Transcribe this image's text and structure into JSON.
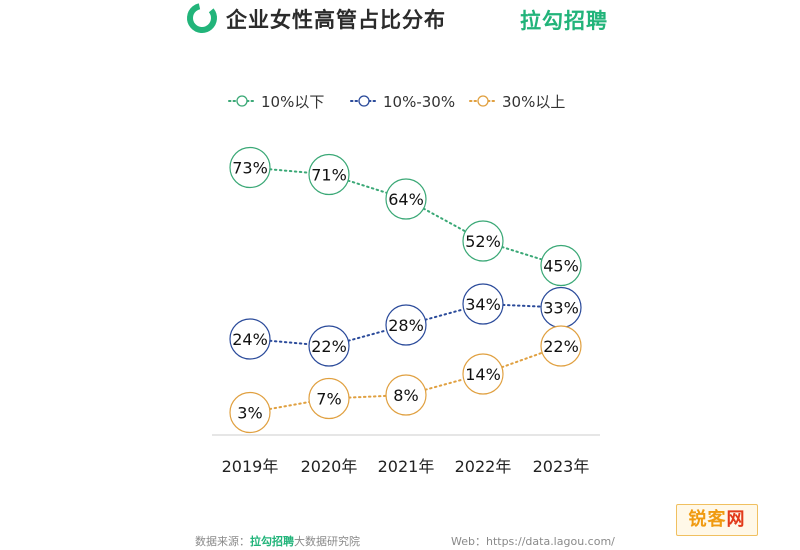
{
  "header": {
    "title": "企业女性高管占比分布",
    "brand": "拉勾招聘"
  },
  "colors": {
    "green": "#3aa876",
    "blue": "#2a4a9a",
    "orange": "#e0a040",
    "brand_green": "#22b47a"
  },
  "chart_data": {
    "type": "line",
    "title": "企业女性高管占比分布",
    "categories": [
      "2019年",
      "2020年",
      "2021年",
      "2022年",
      "2023年"
    ],
    "series": [
      {
        "name": "10%以下",
        "color": "#3aa876",
        "values": [
          73,
          71,
          64,
          52,
          45
        ],
        "labels": [
          "73%",
          "71%",
          "64%",
          "52%",
          "45%"
        ]
      },
      {
        "name": "10%-30%",
        "color": "#2a4a9a",
        "values": [
          24,
          22,
          28,
          34,
          33
        ],
        "labels": [
          "24%",
          "22%",
          "28%",
          "34%",
          "33%"
        ]
      },
      {
        "name": "30%以上",
        "color": "#e0a040",
        "values": [
          3,
          7,
          8,
          14,
          22
        ],
        "labels": [
          "3%",
          "7%",
          "8%",
          "14%",
          "22%"
        ]
      }
    ],
    "legend_position": "top",
    "grid": false,
    "markers": "open-circle",
    "line_style": "dotted"
  },
  "footer": {
    "source_label": "数据来源：",
    "source_brand": "拉勾招聘",
    "source_rest": "大数据研究院",
    "web": "Web：https://data.lagou.com/"
  },
  "watermark": {
    "part1": "锐客",
    "part2": "网"
  }
}
